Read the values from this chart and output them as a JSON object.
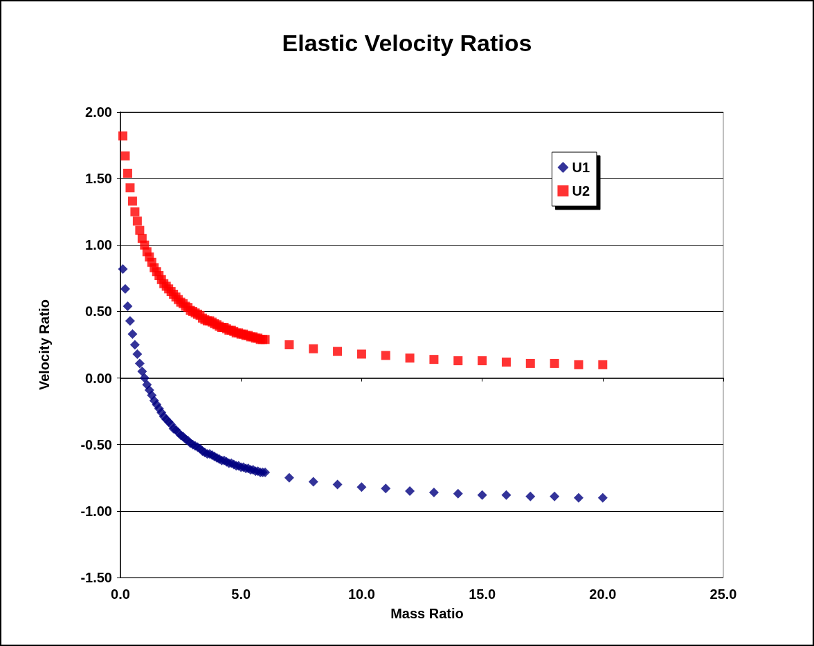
{
  "chart_data": {
    "type": "scatter",
    "title": "Elastic Velocity Ratios",
    "xlabel": "Mass Ratio",
    "ylabel": "Velocity Ratio",
    "x": [
      0.1,
      0.2,
      0.3,
      0.4,
      0.5,
      0.6,
      0.7,
      0.8,
      0.9,
      1.0,
      1.1,
      1.2,
      1.3,
      1.4,
      1.5,
      1.6,
      1.7,
      1.8,
      1.9,
      2.0,
      2.1,
      2.2,
      2.3,
      2.4,
      2.5,
      2.6,
      2.7,
      2.8,
      2.9,
      3.0,
      3.1,
      3.2,
      3.3,
      3.4,
      3.5,
      3.6,
      3.7,
      3.8,
      3.9,
      4.0,
      4.1,
      4.2,
      4.3,
      4.4,
      4.5,
      4.6,
      4.7,
      4.8,
      4.9,
      5.0,
      5.1,
      5.2,
      5.3,
      5.4,
      5.5,
      5.6,
      5.7,
      5.8,
      5.9,
      6.0,
      7,
      8,
      9,
      10,
      11,
      12,
      13,
      14,
      15,
      16,
      17,
      18,
      19,
      20
    ],
    "series": [
      {
        "name": "U1",
        "color": "#000080",
        "marker": "diamond",
        "values": [
          0.82,
          0.67,
          0.54,
          0.43,
          0.33,
          0.25,
          0.18,
          0.11,
          0.05,
          0,
          -0.05,
          -0.09,
          -0.13,
          -0.17,
          -0.2,
          -0.23,
          -0.26,
          -0.29,
          -0.31,
          -0.33,
          -0.35,
          -0.38,
          -0.39,
          -0.41,
          -0.43,
          -0.44,
          -0.46,
          -0.47,
          -0.49,
          -0.5,
          -0.51,
          -0.52,
          -0.53,
          -0.55,
          -0.56,
          -0.57,
          -0.57,
          -0.58,
          -0.59,
          -0.6,
          -0.61,
          -0.62,
          -0.62,
          -0.63,
          -0.64,
          -0.64,
          -0.65,
          -0.66,
          -0.66,
          -0.67,
          -0.67,
          -0.68,
          -0.68,
          -0.69,
          -0.69,
          -0.7,
          -0.7,
          -0.71,
          -0.71,
          -0.71,
          -0.75,
          -0.78,
          -0.8,
          -0.82,
          -0.83,
          -0.85,
          -0.86,
          -0.87,
          -0.88,
          -0.88,
          -0.89,
          -0.89,
          -0.9,
          -0.9
        ]
      },
      {
        "name": "U2",
        "color": "#ff0000",
        "marker": "square",
        "values": [
          1.82,
          1.67,
          1.54,
          1.43,
          1.33,
          1.25,
          1.18,
          1.11,
          1.05,
          1,
          0.95,
          0.91,
          0.87,
          0.83,
          0.8,
          0.77,
          0.74,
          0.71,
          0.69,
          0.67,
          0.65,
          0.63,
          0.61,
          0.59,
          0.57,
          0.56,
          0.54,
          0.53,
          0.51,
          0.5,
          0.49,
          0.48,
          0.47,
          0.45,
          0.44,
          0.43,
          0.43,
          0.42,
          0.41,
          0.4,
          0.39,
          0.38,
          0.38,
          0.37,
          0.36,
          0.36,
          0.35,
          0.34,
          0.34,
          0.33,
          0.33,
          0.32,
          0.32,
          0.31,
          0.31,
          0.3,
          0.3,
          0.29,
          0.29,
          0.29,
          0.25,
          0.22,
          0.2,
          0.18,
          0.17,
          0.15,
          0.14,
          0.13,
          0.13,
          0.12,
          0.11,
          0.11,
          0.1,
          0.1
        ]
      }
    ],
    "xlim": [
      0,
      25
    ],
    "xticks": [
      {
        "value": 0,
        "label": "0.0"
      },
      {
        "value": 5,
        "label": "5.0"
      },
      {
        "value": 10,
        "label": "10.0"
      },
      {
        "value": 15,
        "label": "15.0"
      },
      {
        "value": 20,
        "label": "20.0"
      },
      {
        "value": 25,
        "label": "25.0"
      }
    ],
    "ylim": [
      -1.5,
      2
    ],
    "yticks": [
      {
        "value": -1.5,
        "label": "-1.50"
      },
      {
        "value": -1,
        "label": "-1.00"
      },
      {
        "value": -0.5,
        "label": "-0.50"
      },
      {
        "value": 0,
        "label": "0.00"
      },
      {
        "value": 0.5,
        "label": "0.50"
      },
      {
        "value": 1,
        "label": "1.00"
      },
      {
        "value": 1.5,
        "label": "1.50"
      },
      {
        "value": 2,
        "label": "2.00"
      }
    ],
    "grid": "y",
    "legend": "top right"
  }
}
